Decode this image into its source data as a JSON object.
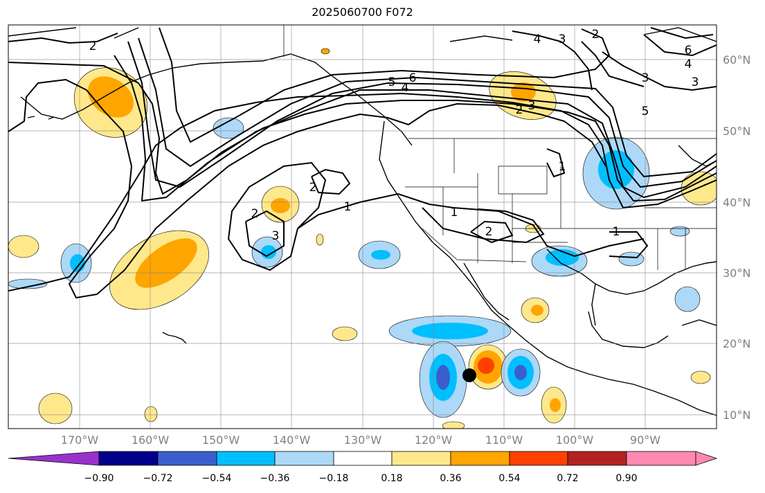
{
  "title": "2025060700 F072",
  "lat_labels": [
    "60°N",
    "50°N",
    "40°N",
    "30°N",
    "20°N",
    "10°N"
  ],
  "lon_labels": [
    "170°W",
    "160°W",
    "150°W",
    "140°W",
    "130°W",
    "120°W",
    "110°W",
    "100°W",
    "90°W"
  ],
  "colorbar": {
    "ticks": [
      "−0.90",
      "−0.72",
      "−0.54",
      "−0.36",
      "−0.18",
      "0.18",
      "0.36",
      "0.54",
      "0.72",
      "0.90"
    ],
    "colors": [
      "#9932cc",
      "#00008b",
      "#3a5fcd",
      "#00bfff",
      "#add8f7",
      "#ffffff",
      "#ffe88c",
      "#ffa500",
      "#ff4000",
      "#b22222",
      "#ff88b0"
    ]
  },
  "contour_labels": [
    "1",
    "2",
    "3",
    "4",
    "5",
    "6"
  ],
  "marker": "black-dot"
}
